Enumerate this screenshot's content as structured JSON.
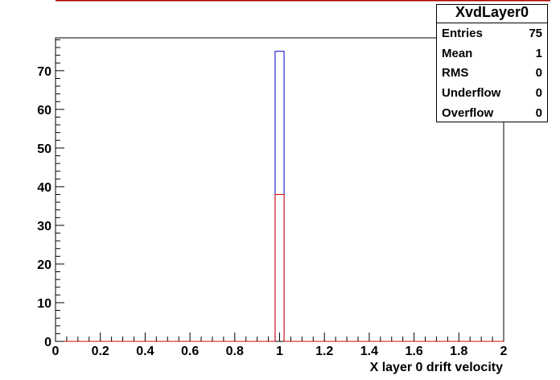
{
  "chart_data": {
    "type": "histogram",
    "xlabel": "X layer 0 drift velocity",
    "ylabel": "",
    "xlim": [
      0,
      2
    ],
    "ylim": [
      0,
      78.5
    ],
    "x_ticks": [
      "0",
      "0.2",
      "0.4",
      "0.6",
      "0.8",
      "1",
      "1.2",
      "1.4",
      "1.6",
      "1.8",
      "2"
    ],
    "y_ticks": [
      "0",
      "10",
      "20",
      "30",
      "40",
      "50",
      "60",
      "70"
    ],
    "bin_width": 0.04,
    "series": [
      {
        "color": "#0000cc",
        "bins": [
          {
            "x0": 0.98,
            "x1": 1.02,
            "value": 75
          }
        ]
      },
      {
        "color": "#dd0000",
        "bins": [
          {
            "x0": 0.98,
            "x1": 1.02,
            "value": 38
          }
        ]
      }
    ],
    "grid": false
  },
  "stats": {
    "title": "XvdLayer0",
    "rows": [
      {
        "label": "Entries",
        "value": "75"
      },
      {
        "label": "Mean",
        "value": "1"
      },
      {
        "label": "RMS",
        "value": "0"
      },
      {
        "label": "Underflow",
        "value": "0"
      },
      {
        "label": "Overflow",
        "value": "0"
      }
    ]
  },
  "colors": {
    "frame": "#000000",
    "top_line": "#aa0000"
  }
}
